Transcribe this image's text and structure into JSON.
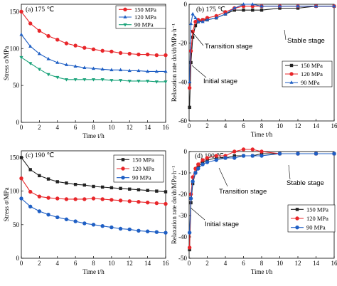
{
  "chart_data": [
    {
      "panel": "a",
      "type": "line",
      "label": "(a)  175 ℃",
      "xlabel": "Time t/h",
      "ylabel": "Stress σ/MPa",
      "xlim": [
        0,
        16
      ],
      "ylim": [
        0,
        160
      ],
      "xticks": [
        0,
        2,
        4,
        6,
        8,
        10,
        12,
        14,
        16
      ],
      "yticks": [
        0,
        50,
        100,
        150
      ],
      "legend_position": "top-right",
      "series": [
        {
          "name": "150 MPa",
          "color": "#e8262a",
          "marker": "circle",
          "x": [
            0,
            1,
            2,
            3,
            4,
            5,
            6,
            7,
            8,
            9,
            10,
            11,
            12,
            13,
            14,
            15,
            16
          ],
          "y": [
            150,
            134,
            124,
            117,
            112,
            107,
            104,
            101,
            99,
            97,
            96,
            94,
            93,
            92,
            92,
            91,
            91
          ]
        },
        {
          "name": "120 MPa",
          "color": "#1f5fc4",
          "marker": "triangle-up",
          "x": [
            0,
            1,
            2,
            3,
            4,
            5,
            6,
            7,
            8,
            9,
            10,
            11,
            12,
            13,
            14,
            15,
            16
          ],
          "y": [
            119,
            103,
            93,
            86,
            81,
            78,
            76,
            74,
            73,
            72,
            71,
            71,
            70,
            70,
            69,
            69,
            69
          ]
        },
        {
          "name": "90 MPa",
          "color": "#1aa37a",
          "marker": "triangle-down",
          "x": [
            0,
            1,
            2,
            3,
            4,
            5,
            6,
            7,
            8,
            9,
            10,
            11,
            12,
            13,
            14,
            15,
            16
          ],
          "y": [
            88,
            80,
            72,
            65,
            61,
            58,
            58,
            58,
            58,
            58,
            57,
            57,
            56,
            56,
            56,
            55,
            55
          ]
        }
      ]
    },
    {
      "panel": "b",
      "type": "line",
      "label": "(b)  175 ℃",
      "xlabel": "Time t/h",
      "ylabel": "Relaxation rate dσ/dt/MPa·h⁻¹",
      "xlim": [
        0,
        16
      ],
      "ylim": [
        -60,
        0
      ],
      "xticks": [
        0,
        2,
        4,
        6,
        8,
        10,
        12,
        14,
        16
      ],
      "yticks": [
        0,
        -20,
        -40,
        -60
      ],
      "legend_position": "bottom-right",
      "annotations": [
        "Transition stage",
        "Stable stage",
        "Initial stage"
      ],
      "series": [
        {
          "name": "150 MPa",
          "color": "#222222",
          "marker": "square",
          "x": [
            0.05,
            0.2,
            0.4,
            0.7,
            1,
            1.5,
            2,
            3,
            4,
            5,
            6,
            7,
            8,
            10,
            12,
            14,
            16
          ],
          "y": [
            -53,
            -30,
            -17,
            -11,
            -9,
            -8,
            -8,
            -7,
            -5,
            -3,
            -3,
            -3,
            -3,
            -2,
            -2,
            -1,
            -1
          ]
        },
        {
          "name": "120 MPa",
          "color": "#e8262a",
          "marker": "circle",
          "x": [
            0.05,
            0.2,
            0.4,
            0.7,
            1,
            1.5,
            2,
            3,
            4,
            5,
            6,
            7,
            8,
            10,
            12,
            14,
            16
          ],
          "y": [
            -43,
            -24,
            -14,
            -9,
            -8,
            -8,
            -7,
            -6,
            -4,
            -2,
            -1,
            -1,
            -1,
            -1,
            -1,
            -1,
            -1
          ]
        },
        {
          "name": "90 MPa",
          "color": "#1f5fc4",
          "marker": "triangle-up",
          "x": [
            0.05,
            0.2,
            0.4,
            0.7,
            1,
            1.5,
            2,
            3,
            4,
            5,
            6,
            7,
            8,
            10,
            12,
            14,
            16
          ],
          "y": [
            -40,
            -10,
            -5,
            -7,
            -9,
            -9,
            -8,
            -7,
            -5,
            -2,
            0,
            0,
            -1,
            -1,
            -1,
            -1,
            -1
          ]
        }
      ]
    },
    {
      "panel": "c",
      "type": "line",
      "label": "(c)  190 ℃",
      "xlabel": "Time t/h",
      "ylabel": "Stress σ/MPa",
      "xlim": [
        0,
        16
      ],
      "ylim": [
        0,
        160
      ],
      "xticks": [
        0,
        2,
        4,
        6,
        8,
        10,
        12,
        14,
        16
      ],
      "yticks": [
        0,
        50,
        100,
        150
      ],
      "legend_position": "top-right",
      "series": [
        {
          "name": "150 MPa",
          "color": "#222222",
          "marker": "square",
          "x": [
            0,
            1,
            2,
            3,
            4,
            5,
            6,
            7,
            8,
            9,
            10,
            11,
            12,
            13,
            14,
            15,
            16
          ],
          "y": [
            150,
            132,
            123,
            118,
            114,
            112,
            110,
            109,
            107,
            106,
            105,
            104,
            103,
            102,
            101,
            100,
            99
          ]
        },
        {
          "name": "120 MPa",
          "color": "#e8262a",
          "marker": "circle",
          "x": [
            0,
            1,
            2,
            3,
            4,
            5,
            6,
            7,
            8,
            9,
            10,
            11,
            12,
            13,
            14,
            15,
            16
          ],
          "y": [
            119,
            99,
            92,
            90,
            89,
            88,
            88,
            88,
            89,
            88,
            87,
            86,
            85,
            84,
            83,
            82,
            81
          ]
        },
        {
          "name": "90 MPa",
          "color": "#1f5fc4",
          "marker": "circle",
          "x": [
            0,
            1,
            2,
            3,
            4,
            5,
            6,
            7,
            8,
            9,
            10,
            11,
            12,
            13,
            14,
            15,
            16
          ],
          "y": [
            89,
            77,
            70,
            65,
            61,
            58,
            55,
            52,
            50,
            48,
            46,
            44,
            43,
            41,
            40,
            39,
            38
          ]
        }
      ]
    },
    {
      "panel": "d",
      "type": "line",
      "label": "(d)  190 ℃",
      "xlabel": "Time t/h",
      "ylabel": "Relaxation rate dσ/dt/MPa·h⁻¹",
      "xlim": [
        0,
        16
      ],
      "ylim": [
        -50,
        0
      ],
      "xticks": [
        0,
        2,
        4,
        6,
        8,
        10,
        12,
        14,
        16
      ],
      "yticks": [
        0,
        -10,
        -20,
        -30,
        -40,
        -50
      ],
      "legend_position": "bottom-right",
      "annotations": [
        "Transition stage",
        "Stable stage",
        "Initial stage"
      ],
      "series": [
        {
          "name": "150 MPa",
          "color": "#222222",
          "marker": "square",
          "x": [
            0.05,
            0.2,
            0.4,
            0.7,
            1,
            1.5,
            2,
            3,
            4,
            5,
            6,
            7,
            8,
            10,
            12,
            14,
            16
          ],
          "y": [
            -46,
            -24,
            -15,
            -10,
            -7,
            -5,
            -4,
            -3,
            -3,
            -2,
            -2,
            -2,
            -1,
            -1,
            -1,
            -1,
            -1
          ]
        },
        {
          "name": "120 MPa",
          "color": "#e8262a",
          "marker": "circle",
          "x": [
            0.05,
            0.2,
            0.4,
            0.7,
            1,
            1.5,
            2,
            3,
            4,
            5,
            6,
            7,
            8,
            10,
            12,
            14,
            16
          ],
          "y": [
            -45,
            -20,
            -12,
            -8,
            -6,
            -4,
            -3,
            -2,
            -2,
            0,
            1,
            1,
            0,
            -1,
            -1,
            -1,
            -1
          ]
        },
        {
          "name": "90 MPa",
          "color": "#1f5fc4",
          "marker": "circle",
          "x": [
            0.05,
            0.2,
            0.4,
            0.7,
            1,
            1.5,
            2,
            3,
            4,
            5,
            6,
            7,
            8,
            10,
            12,
            14,
            16
          ],
          "y": [
            -38,
            -22,
            -14,
            -10,
            -8,
            -6,
            -5,
            -4,
            -3,
            -3,
            -2,
            -2,
            -2,
            -1,
            -1,
            -1,
            -1
          ]
        }
      ]
    }
  ]
}
